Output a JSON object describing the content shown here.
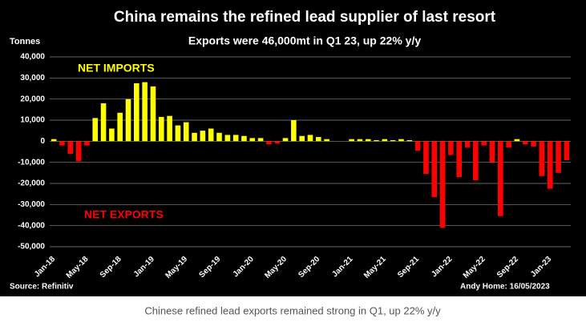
{
  "chart_data": {
    "type": "bar",
    "title": "China remains the refined lead supplier of last resort",
    "subtitle": "Exports were 46,000mt in Q1 23, up 22% y/y",
    "y_axis_label": "Tonnes",
    "annotations": [
      "NET IMPORTS",
      "NET EXPORTS"
    ],
    "source": "Source: Refinitiv",
    "credit": "Andy Home: 16/05/2023",
    "caption": "Chinese refined lead exports remained strong in Q1, up 22% y/y",
    "categories": [
      "Jan-18",
      null,
      null,
      null,
      "May-18",
      null,
      null,
      null,
      "Sep-18",
      null,
      null,
      null,
      "Jan-19",
      null,
      null,
      null,
      "May-19",
      null,
      null,
      null,
      "Sep-19",
      null,
      null,
      null,
      "Jan-20",
      null,
      null,
      null,
      "May-20",
      null,
      null,
      null,
      "Sep-20",
      null,
      null,
      null,
      "Jan-21",
      null,
      null,
      null,
      "May-21",
      null,
      null,
      null,
      "Sep-21",
      null,
      null,
      null,
      "Jan-22",
      null,
      null,
      null,
      "May-22",
      null,
      null,
      null,
      "Sep-22",
      null,
      null,
      null,
      "Jan-23",
      null,
      null
    ],
    "values": [
      1000,
      -2000,
      -6000,
      -9500,
      -2000,
      11000,
      18000,
      6000,
      13500,
      20000,
      27500,
      28000,
      26000,
      11500,
      12000,
      7500,
      9000,
      4000,
      5000,
      6000,
      4000,
      3000,
      3000,
      2500,
      1500,
      1500,
      -1500,
      -1000,
      1500,
      10000,
      2500,
      3000,
      2000,
      1000,
      0,
      0,
      1000,
      1000,
      1000,
      500,
      1000,
      500,
      1000,
      500,
      -4500,
      -15500,
      -26500,
      -41000,
      -6500,
      -17000,
      -3000,
      -18500,
      -2000,
      -10000,
      -35500,
      -3000,
      1000,
      -1500,
      -2500,
      -16500,
      -22500,
      -15000,
      -9000
    ],
    "positive_color": "#ffff00",
    "negative_color": "#ff0000",
    "ylim": [
      -50000,
      40000
    ],
    "yticks": [
      {
        "value": -50000,
        "label": "-50,000"
      },
      {
        "value": -40000,
        "label": "-40,000"
      },
      {
        "value": -30000,
        "label": "-30,000"
      },
      {
        "value": -20000,
        "label": "-20,000"
      },
      {
        "value": -10000,
        "label": "-10,000"
      },
      0,
      {
        "value": 10000,
        "label": "10,000"
      },
      {
        "value": 20000,
        "label": "20,000"
      },
      {
        "value": 30000,
        "label": "30,000"
      },
      {
        "value": 40000,
        "label": "40,000"
      }
    ],
    "grid": true
  }
}
